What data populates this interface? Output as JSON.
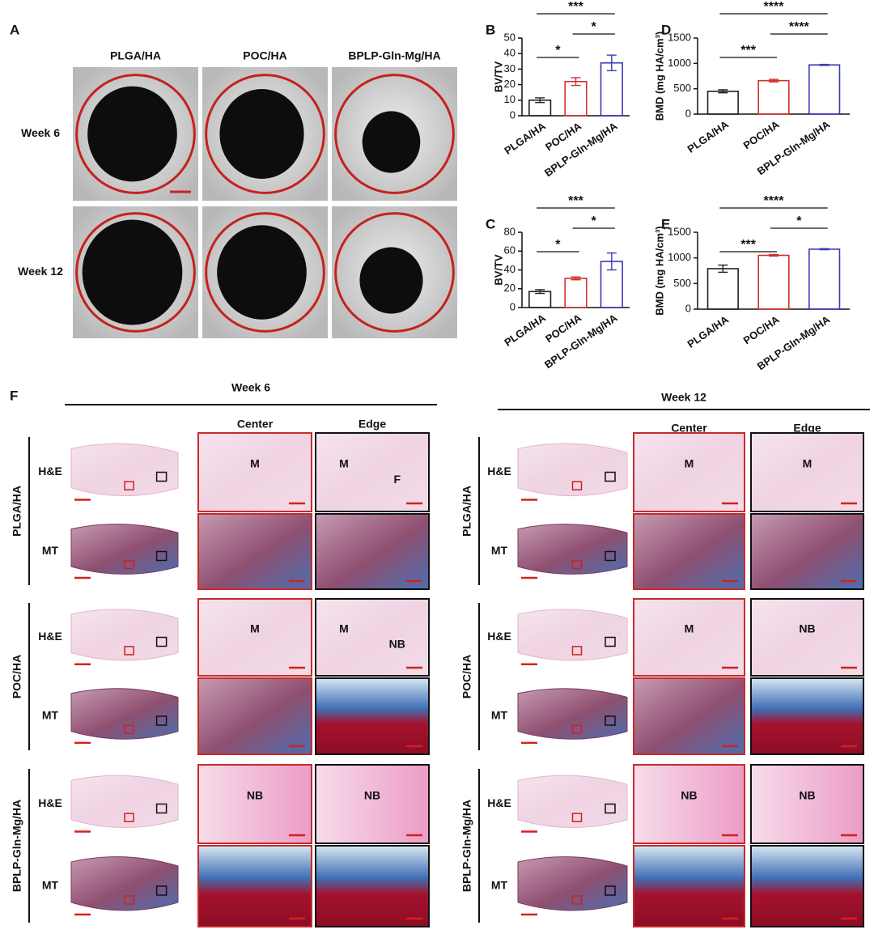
{
  "panel_a": {
    "label": "A",
    "columns": [
      "PLGA/HA",
      "POC/HA",
      "BPLP-Gln-Mg/HA"
    ],
    "rows": [
      "Week 6",
      "Week 12"
    ]
  },
  "chart_data": [
    {
      "type": "bar",
      "panel": "B",
      "ylabel": "BV/TV",
      "categories": [
        "PLGA/HA",
        "POC/HA",
        "BPLP-Gln-Mg/HA"
      ],
      "values": [
        10,
        22,
        34
      ],
      "errors": [
        1.5,
        2.5,
        5
      ],
      "colors": [
        "#222222",
        "#d0312d",
        "#3a3ab8"
      ],
      "ylim": [
        0,
        50
      ],
      "yticks": [
        0,
        10,
        20,
        30,
        40,
        50
      ],
      "significance": [
        "*",
        "*",
        "***"
      ]
    },
    {
      "type": "bar",
      "panel": "C",
      "ylabel": "BV/TV",
      "categories": [
        "PLGA/HA",
        "POC/HA",
        "BPLP-Gln-Mg/HA"
      ],
      "values": [
        17,
        31,
        49
      ],
      "errors": [
        2,
        1.5,
        9
      ],
      "colors": [
        "#222222",
        "#d0312d",
        "#3a3ab8"
      ],
      "ylim": [
        0,
        80
      ],
      "yticks": [
        0,
        20,
        40,
        60,
        80
      ],
      "significance": [
        "*",
        "*",
        "***"
      ]
    },
    {
      "type": "bar",
      "panel": "D",
      "ylabel": "BMD (mg HA/cm³)",
      "categories": [
        "PLGA/HA",
        "POC/HA",
        "BPLP-Gln-Mg/HA"
      ],
      "values": [
        450,
        660,
        970
      ],
      "errors": [
        30,
        25,
        10
      ],
      "colors": [
        "#222222",
        "#d0312d",
        "#3a3ab8"
      ],
      "ylim": [
        0,
        1500
      ],
      "yticks": [
        0,
        500,
        1000,
        1500
      ],
      "significance": [
        "***",
        "****",
        "****"
      ]
    },
    {
      "type": "bar",
      "panel": "E",
      "ylabel": "BMD (mg HA/cm³)",
      "categories": [
        "PLGA/HA",
        "POC/HA",
        "BPLP-Gln-Mg/HA"
      ],
      "values": [
        790,
        1050,
        1170
      ],
      "errors": [
        70,
        15,
        10
      ],
      "colors": [
        "#222222",
        "#d0312d",
        "#3a3ab8"
      ],
      "ylim": [
        0,
        1500
      ],
      "yticks": [
        0,
        500,
        1000,
        1500
      ],
      "significance": [
        "***",
        "*",
        "****"
      ]
    }
  ],
  "panel_f": {
    "label": "F",
    "column_headers": [
      "Center",
      "Edge"
    ],
    "weeks": [
      {
        "title": "Week 6",
        "groups": [
          {
            "name": "PLGA/HA",
            "rows": [
              {
                "stain": "H&E",
                "center": [
                  "M"
                ],
                "edge": [
                  "M",
                  "F"
                ]
              },
              {
                "stain": "MT",
                "center": [],
                "edge": []
              }
            ]
          },
          {
            "name": "POC/HA",
            "rows": [
              {
                "stain": "H&E",
                "center": [
                  "M"
                ],
                "edge": [
                  "M",
                  "NB"
                ]
              },
              {
                "stain": "MT",
                "center": [],
                "edge": []
              }
            ]
          },
          {
            "name": "BPLP-Gln-Mg/HA",
            "rows": [
              {
                "stain": "H&E",
                "center": [
                  "NB"
                ],
                "edge": [
                  "NB"
                ]
              },
              {
                "stain": "MT",
                "center": [],
                "edge": []
              }
            ]
          }
        ]
      },
      {
        "title": "Week 12",
        "groups": [
          {
            "name": "PLGA/HA",
            "rows": [
              {
                "stain": "H&E",
                "center": [
                  "M"
                ],
                "edge": [
                  "M"
                ]
              },
              {
                "stain": "MT",
                "center": [],
                "edge": []
              }
            ]
          },
          {
            "name": "POC/HA",
            "rows": [
              {
                "stain": "H&E",
                "center": [
                  "M"
                ],
                "edge": [
                  "NB"
                ]
              },
              {
                "stain": "MT",
                "center": [],
                "edge": []
              }
            ]
          },
          {
            "name": "BPLP-Gln-Mg/HA",
            "rows": [
              {
                "stain": "H&E",
                "center": [
                  "NB"
                ],
                "edge": [
                  "NB"
                ]
              },
              {
                "stain": "MT",
                "center": [],
                "edge": []
              }
            ]
          }
        ]
      }
    ]
  }
}
